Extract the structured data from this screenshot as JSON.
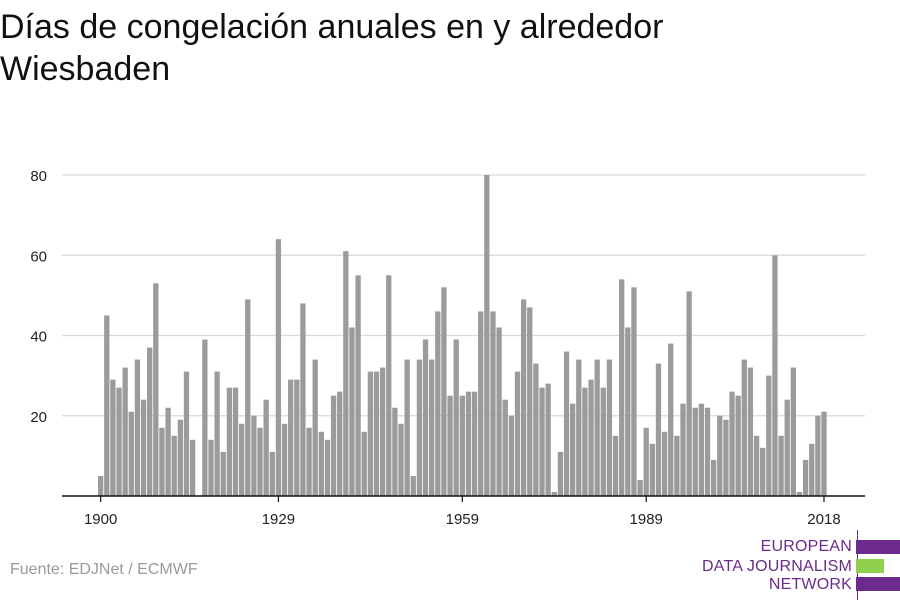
{
  "title": "Días de congelación anuales en y alrededor Wiesbaden",
  "source": "Fuente: EDJNet / ECMWF",
  "logo": {
    "lines": [
      "EUROPEAN",
      "DATA JOURNALISM",
      "NETWORK"
    ],
    "colors": {
      "purple": "#6c2a8f",
      "green": "#8fd14f"
    }
  },
  "colors": {
    "bar": "#9b9b9b",
    "grid": "#d9d9d9",
    "axis": "#111111",
    "tick_text": "#222222"
  },
  "chart_data": {
    "type": "bar",
    "title": "Días de congelación anuales en y alrededor Wiesbaden",
    "xlabel": "",
    "ylabel": "",
    "x_start": 1900,
    "x_ticks": [
      1900,
      1929,
      1959,
      1989,
      2018
    ],
    "y_ticks": [
      20,
      40,
      60,
      80
    ],
    "ylim": [
      0,
      80
    ],
    "grid": "horizontal",
    "values": [
      5,
      45,
      29,
      27,
      32,
      21,
      34,
      24,
      37,
      53,
      17,
      22,
      15,
      19,
      31,
      14,
      0,
      39,
      14,
      31,
      11,
      27,
      27,
      18,
      49,
      20,
      17,
      24,
      11,
      64,
      18,
      29,
      29,
      48,
      17,
      34,
      16,
      14,
      25,
      26,
      61,
      42,
      55,
      16,
      31,
      31,
      32,
      55,
      22,
      18,
      34,
      5,
      34,
      39,
      34,
      46,
      52,
      25,
      39,
      25,
      26,
      26,
      46,
      80,
      46,
      42,
      24,
      20,
      31,
      49,
      47,
      33,
      27,
      28,
      1,
      11,
      36,
      23,
      34,
      27,
      29,
      34,
      27,
      34,
      15,
      54,
      42,
      52,
      4,
      17,
      13,
      33,
      16,
      38,
      15,
      23,
      51,
      22,
      23,
      22,
      9,
      20,
      19,
      26,
      25,
      34,
      32,
      15,
      12,
      30,
      60,
      15,
      24,
      32,
      1,
      9,
      13,
      20,
      21
    ]
  }
}
